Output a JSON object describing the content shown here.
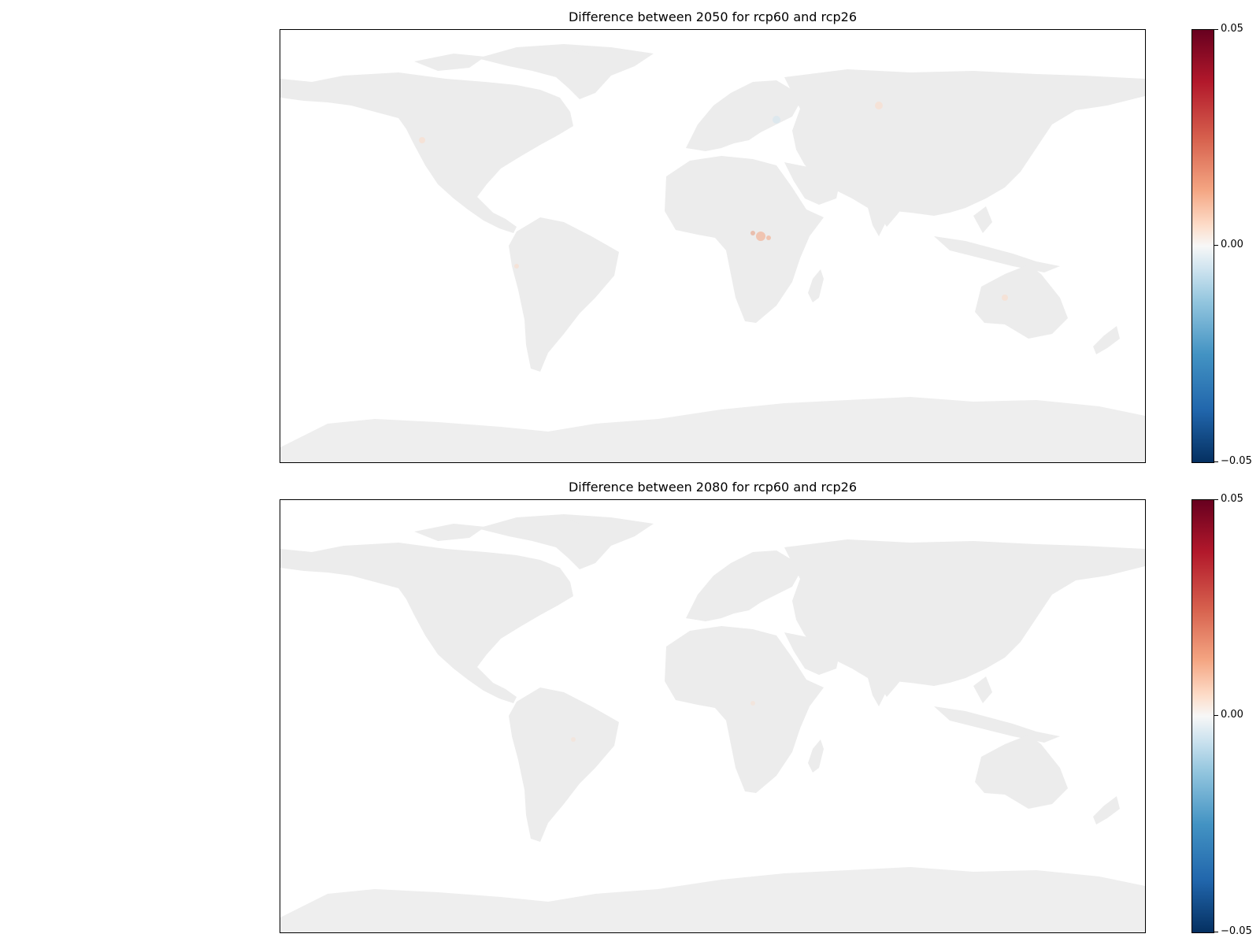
{
  "panels": [
    {
      "title": "Difference between 2050 for rcp60 and rcp26",
      "colorbar": {
        "ticks": [
          "0.05",
          "0.00",
          "−0.05"
        ],
        "range": [
          -0.05,
          0.05
        ]
      }
    },
    {
      "title": "Difference between 2080 for rcp60 and rcp26",
      "colorbar": {
        "ticks": [
          "0.05",
          "0.00",
          "−0.05"
        ],
        "range": [
          -0.05,
          0.05
        ]
      }
    }
  ],
  "colors": {
    "land": "#ececec",
    "antarctica": "#eeeeee",
    "positive_high": "#67001f",
    "neutral": "#f7f7f7",
    "negative_high": "#053061"
  },
  "colormap": "RdBu_r"
}
